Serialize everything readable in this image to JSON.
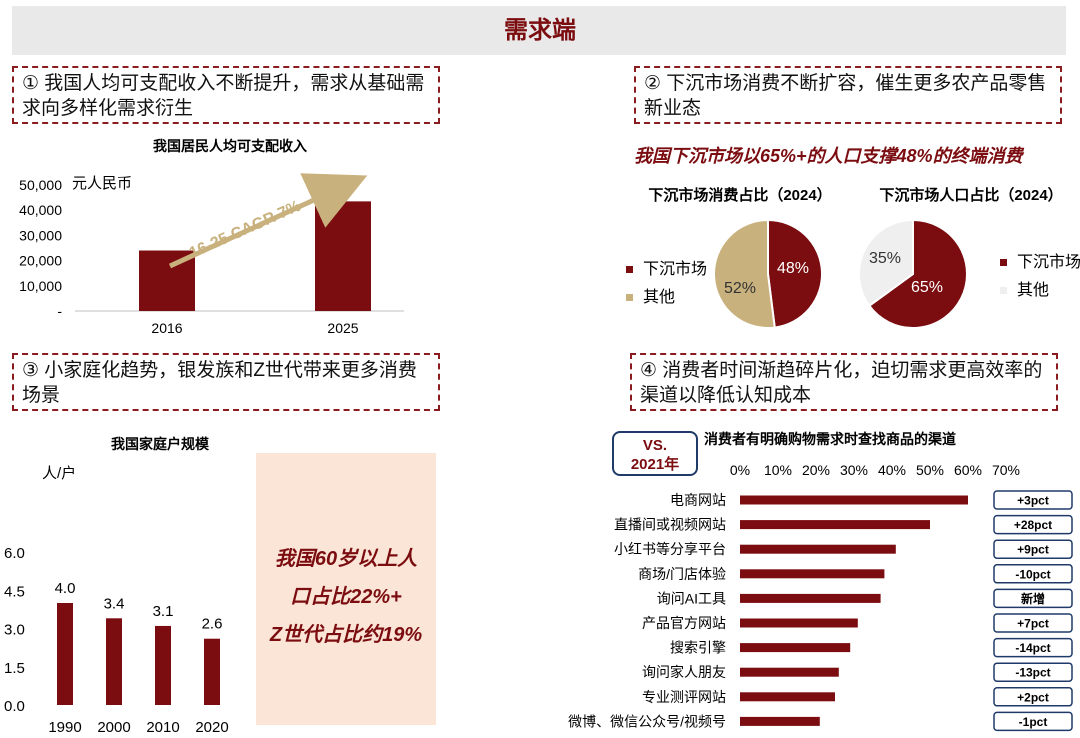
{
  "banner": {
    "title": "需求端"
  },
  "callouts": [
    {
      "text": "① 我国人均可支配收入不断提升，需求从基础需求向多样化需求衍生"
    },
    {
      "text": "② 下沉市场消费不断扩容，催生更多农产品零售新业态"
    },
    {
      "text": "③ 小家庭化趋势，银发族和Z世代带来更多消费场景"
    },
    {
      "text": "④ 消费者时间渐趋碎片化，迫切需求更高效率的渠道以降低认知成本"
    }
  ],
  "section2_headline": "我国下沉市场以65%+的人口支撑48%的终端消费",
  "pop_note": {
    "lines": [
      "我国60岁以上人",
      "口占比22%+",
      "Z世代占比约19%"
    ]
  },
  "vs_label": {
    "line1": "VS.",
    "line2": "2021年"
  },
  "colors": {
    "primary": "#7b0c10",
    "tan": "#c9b17e",
    "light": "#efefef",
    "note_bg": "#fbe5d6",
    "frame": "#1f3a68"
  },
  "chart_data": [
    {
      "type": "bar",
      "title": "我国居民人均可支配收入",
      "unit": "元人民币",
      "categories": [
        "2016",
        "2025"
      ],
      "values": [
        24000,
        43500
      ],
      "ylim": [
        0,
        50000
      ],
      "yticks": [
        "-",
        "10,000",
        "20,000",
        "30,000",
        "40,000",
        "50,000"
      ],
      "annotation": "16-25 CAGR 7%"
    },
    {
      "type": "pie",
      "title": "下沉市场消费占比（2024）",
      "labels": [
        "下沉市场",
        "其他"
      ],
      "values": [
        48,
        52
      ],
      "value_labels": [
        "48%",
        "52%"
      ],
      "colors": [
        "#7b0c10",
        "#c9b17e"
      ]
    },
    {
      "type": "pie",
      "title": "下沉市场人口占比（2024）",
      "labels": [
        "下沉市场",
        "其他"
      ],
      "values": [
        65,
        35
      ],
      "value_labels": [
        "65%",
        "35%"
      ],
      "colors": [
        "#7b0c10",
        "#efefef"
      ]
    },
    {
      "type": "bar",
      "title": "我国家庭户规模",
      "unit": "人/户",
      "categories": [
        "1990",
        "2000",
        "2010",
        "2020"
      ],
      "values": [
        4.0,
        3.4,
        3.1,
        2.6
      ],
      "value_labels": [
        "4.0",
        "3.4",
        "3.1",
        "2.6"
      ],
      "ylim": [
        0,
        6.0
      ],
      "yticks": [
        "0.0",
        "1.5",
        "3.0",
        "4.5",
        "6.0"
      ]
    },
    {
      "type": "bar",
      "orientation": "horizontal",
      "title": "消费者有明确购物需求时查找商品的渠道",
      "categories": [
        "电商网站",
        "直播间或视频网站",
        "小红书等分享平台",
        "商场/门店体验",
        "询问AI工具",
        "产品官方网站",
        "搜索引擎",
        "询问家人朋友",
        "专业测评网站",
        "微博、微信公众号/视频号"
      ],
      "values": [
        0.6,
        0.5,
        0.41,
        0.38,
        0.37,
        0.31,
        0.29,
        0.26,
        0.25,
        0.21
      ],
      "xlim": [
        0,
        0.7
      ],
      "xticks": [
        "0%",
        "10%",
        "20%",
        "30%",
        "40%",
        "50%",
        "60%",
        "70%"
      ],
      "changes": [
        "+3pct",
        "+28pct",
        "+9pct",
        "-10pct",
        "新增",
        "+7pct",
        "-14pct",
        "-13pct",
        "+2pct",
        "-1pct"
      ]
    }
  ]
}
